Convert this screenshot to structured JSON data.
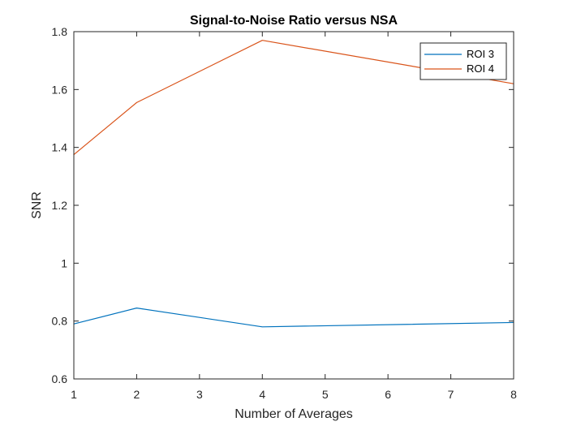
{
  "chart_data": {
    "type": "line",
    "title": "Signal-to-Noise Ratio versus NSA",
    "xlabel": "Number of Averages",
    "ylabel": "SNR",
    "xlim": [
      1,
      8
    ],
    "ylim": [
      0.6,
      1.8
    ],
    "xticks": [
      1,
      2,
      3,
      4,
      5,
      6,
      7,
      8
    ],
    "yticks": [
      0.6,
      0.8,
      1,
      1.2,
      1.4,
      1.6,
      1.8
    ],
    "xtick_labels": [
      "1",
      "2",
      "3",
      "4",
      "5",
      "6",
      "7",
      "8"
    ],
    "ytick_labels": [
      "0.6",
      "0.8",
      "1",
      "1.2",
      "1.4",
      "1.6",
      "1.8"
    ],
    "grid": false,
    "legend_position": "top-right",
    "x": [
      1,
      2,
      4,
      8
    ],
    "series": [
      {
        "name": "ROI 3",
        "color": "#0072BD",
        "values": [
          0.79,
          0.845,
          0.78,
          0.795
        ]
      },
      {
        "name": "ROI 4",
        "color": "#D95319",
        "values": [
          1.375,
          1.555,
          1.77,
          1.62
        ]
      }
    ]
  }
}
